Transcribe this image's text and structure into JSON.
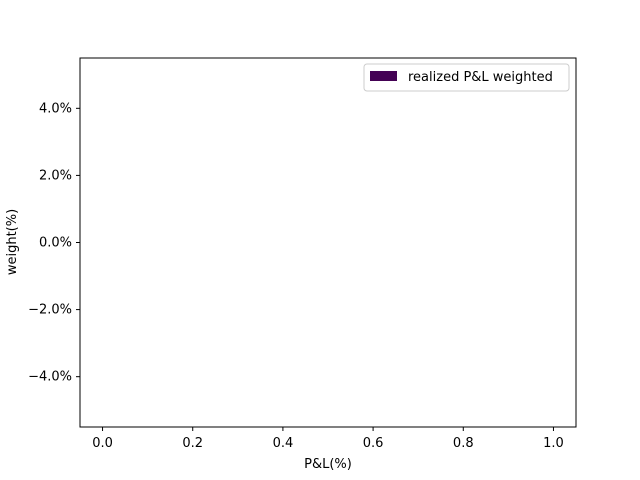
{
  "chart_data": {
    "type": "bar",
    "title": "",
    "xlabel": "P&L(%)",
    "ylabel": "weight(%)",
    "xlim": [
      -0.05,
      1.05
    ],
    "ylim": [
      -0.055,
      0.055
    ],
    "x_ticks": [
      0.0,
      0.2,
      0.4,
      0.6,
      0.8,
      1.0
    ],
    "x_tick_labels": [
      "0.0",
      "0.2",
      "0.4",
      "0.6",
      "0.8",
      "1.0"
    ],
    "y_ticks": [
      -0.04,
      -0.02,
      0.0,
      0.02,
      0.04
    ],
    "y_tick_labels": [
      "−4.0%",
      "−2.0%",
      "0.0%",
      "2.0%",
      "4.0%"
    ],
    "grid": false,
    "legend_position": "top-right",
    "series": [
      {
        "name": "realized P&L weighted",
        "color": "#440154",
        "x": [],
        "values": []
      }
    ]
  }
}
